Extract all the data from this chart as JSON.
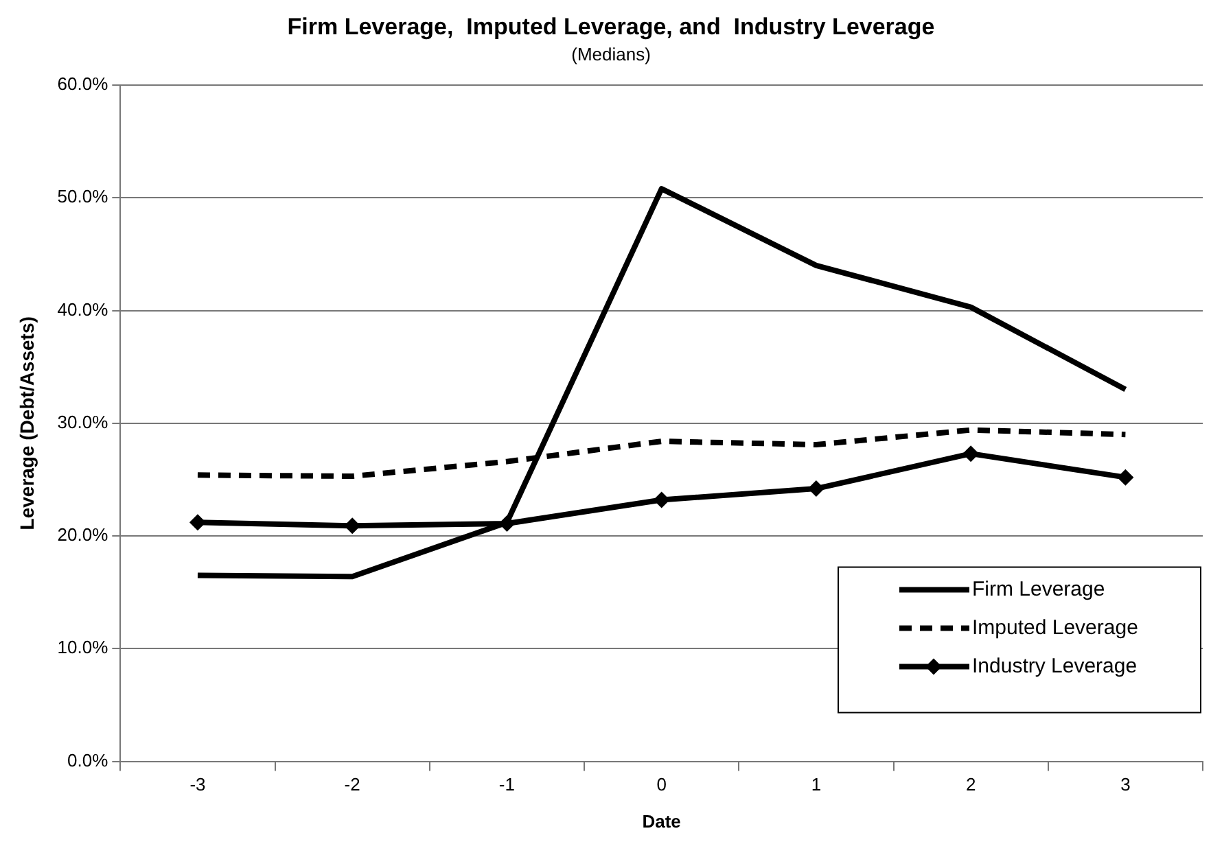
{
  "chart_data": {
    "type": "line",
    "title": "Firm Leverage,  Imputed Leverage, and  Industry Leverage",
    "subtitle": "(Medians)",
    "xlabel": "Date",
    "ylabel": "Leverage (Debt/Assets)",
    "categories": [
      "-3",
      "-2",
      "-1",
      "0",
      "1",
      "2",
      "3"
    ],
    "series": [
      {
        "name": "Firm Leverage",
        "color": "#000000",
        "line_style": "solid",
        "marker": "none",
        "values": [
          16.5,
          16.4,
          21.2,
          50.8,
          44.0,
          40.3,
          33.0
        ]
      },
      {
        "name": "Imputed Leverage",
        "color": "#000000",
        "line_style": "dashed",
        "marker": "none",
        "values": [
          25.4,
          25.3,
          26.6,
          28.4,
          28.1,
          29.4,
          29.0
        ]
      },
      {
        "name": "Industry Leverage",
        "color": "#000000",
        "line_style": "solid",
        "marker": "diamond",
        "values": [
          21.2,
          20.9,
          21.1,
          23.2,
          24.2,
          27.3,
          25.2
        ]
      }
    ],
    "ylim": [
      0,
      60
    ],
    "yticks": [
      {
        "value": 0,
        "label": "0.0%"
      },
      {
        "value": 10,
        "label": "10.0%"
      },
      {
        "value": 20,
        "label": "20.0%"
      },
      {
        "value": 30,
        "label": "30.0%"
      },
      {
        "value": 40,
        "label": "40.0%"
      },
      {
        "value": 50,
        "label": "50.0%"
      },
      {
        "value": 60,
        "label": "60.0%"
      }
    ],
    "grid": "y",
    "legend": "bottom right"
  }
}
